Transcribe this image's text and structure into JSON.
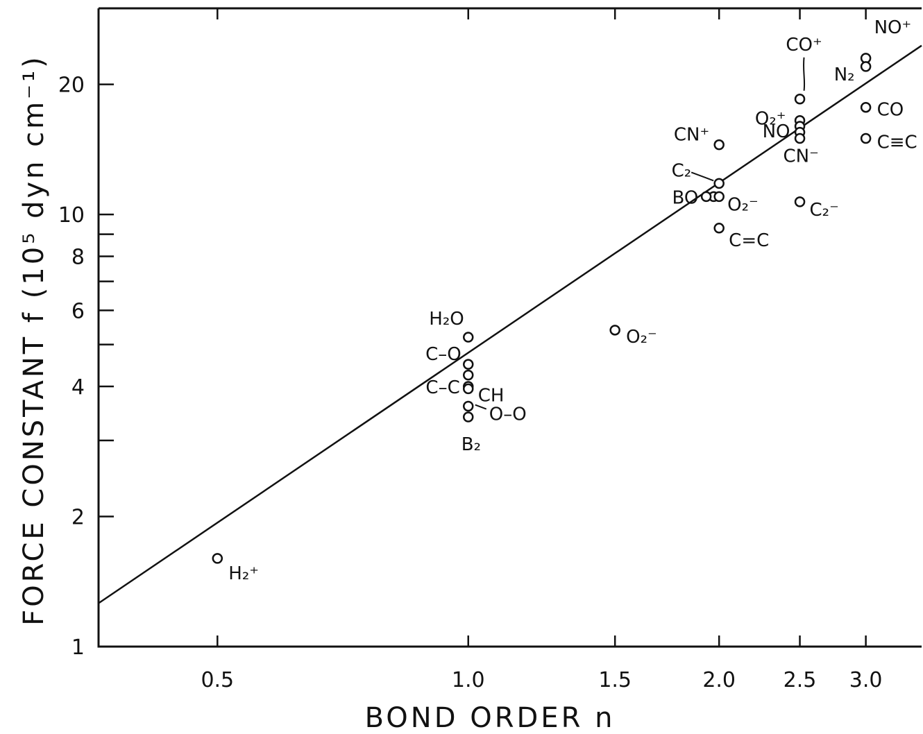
{
  "chart_data": {
    "type": "scatter",
    "title": "",
    "xlabel": "BOND ORDER  n",
    "ylabel": "FORCE CONSTANT  f  (10⁵ dyn cm⁻¹)",
    "x_scale": "log",
    "y_scale": "log",
    "xlim": [
      0.36,
      3.5
    ],
    "ylim": [
      1,
      30
    ],
    "x_ticks": [
      {
        "value": 0.5,
        "label": "0.5"
      },
      {
        "value": 1.0,
        "label": "1.0"
      },
      {
        "value": 1.5,
        "label": "1.5"
      },
      {
        "value": 2.0,
        "label": "2.0"
      },
      {
        "value": 2.5,
        "label": "2.5"
      },
      {
        "value": 3.0,
        "label": "3.0"
      }
    ],
    "y_ticks": [
      {
        "value": 1,
        "label": "1"
      },
      {
        "value": 2,
        "label": "2"
      },
      {
        "value": 3,
        "label": ""
      },
      {
        "value": 4,
        "label": "4"
      },
      {
        "value": 5,
        "label": ""
      },
      {
        "value": 6,
        "label": "6"
      },
      {
        "value": 7,
        "label": ""
      },
      {
        "value": 8,
        "label": "8"
      },
      {
        "value": 9,
        "label": ""
      },
      {
        "value": 10,
        "label": "10"
      },
      {
        "value": 20,
        "label": "20"
      }
    ],
    "fit_line": {
      "x": [
        0.36,
        3.5
      ],
      "y": [
        1.26,
        24.6
      ]
    },
    "points": [
      {
        "label": "H₂⁺",
        "x": 0.5,
        "y": 1.6
      },
      {
        "label": "H₂O",
        "x": 1.0,
        "y": 5.2
      },
      {
        "label": "C–O",
        "x": 1.0,
        "y": 4.5
      },
      {
        "label": "",
        "x": 1.0,
        "y": 4.25
      },
      {
        "label": "C–C",
        "x": 1.0,
        "y": 4.0
      },
      {
        "label": "CH",
        "x": 1.0,
        "y": 3.95
      },
      {
        "label": "O–O",
        "x": 1.0,
        "y": 3.6
      },
      {
        "label": "B₂",
        "x": 1.0,
        "y": 3.4
      },
      {
        "label": "O₂⁻",
        "x": 1.5,
        "y": 5.4
      },
      {
        "label": "CN⁺",
        "x": 2.0,
        "y": 14.5
      },
      {
        "label": "C₂",
        "x": 2.0,
        "y": 11.8
      },
      {
        "label": "BO",
        "x": 1.97,
        "y": 11.0
      },
      {
        "label": "",
        "x": 1.93,
        "y": 11.0
      },
      {
        "label": "O₂⁻",
        "x": 2.0,
        "y": 11.0
      },
      {
        "label": "C=C",
        "x": 2.0,
        "y": 9.3
      },
      {
        "label": "CO⁺",
        "x": 2.5,
        "y": 18.5
      },
      {
        "label": "O₂⁺",
        "x": 2.5,
        "y": 16.5
      },
      {
        "label": "NO",
        "x": 2.5,
        "y": 16.0
      },
      {
        "label": "",
        "x": 2.5,
        "y": 15.5
      },
      {
        "label": "CN⁻",
        "x": 2.5,
        "y": 15.0
      },
      {
        "label": "C₂⁻",
        "x": 2.5,
        "y": 10.7
      },
      {
        "label": "NO⁺",
        "x": 3.0,
        "y": 23.0
      },
      {
        "label": "N₂",
        "x": 3.0,
        "y": 22.0
      },
      {
        "label": "CO",
        "x": 3.0,
        "y": 17.7
      },
      {
        "label": "C≡C",
        "x": 3.0,
        "y": 15.0
      }
    ]
  }
}
